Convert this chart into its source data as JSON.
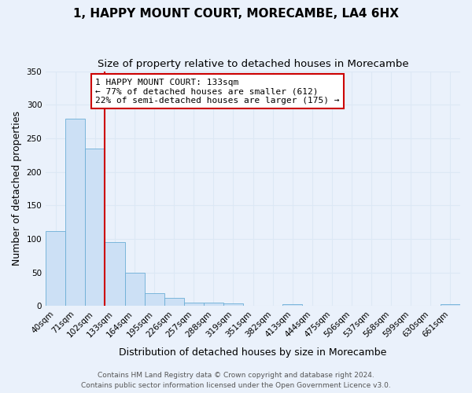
{
  "title": "1, HAPPY MOUNT COURT, MORECAMBE, LA4 6HX",
  "subtitle": "Size of property relative to detached houses in Morecambe",
  "xlabel": "Distribution of detached houses by size in Morecambe",
  "ylabel": "Number of detached properties",
  "bin_labels": [
    "40sqm",
    "71sqm",
    "102sqm",
    "133sqm",
    "164sqm",
    "195sqm",
    "226sqm",
    "257sqm",
    "288sqm",
    "319sqm",
    "351sqm",
    "382sqm",
    "413sqm",
    "444sqm",
    "475sqm",
    "506sqm",
    "537sqm",
    "568sqm",
    "599sqm",
    "630sqm",
    "661sqm"
  ],
  "bar_heights": [
    111,
    279,
    235,
    95,
    49,
    19,
    12,
    5,
    5,
    4,
    0,
    0,
    3,
    0,
    0,
    0,
    0,
    0,
    0,
    0,
    3
  ],
  "bar_color": "#cce0f5",
  "bar_edge_color": "#6baed6",
  "property_line_x": 3.0,
  "property_line_color": "#cc0000",
  "annotation_text": "1 HAPPY MOUNT COURT: 133sqm\n← 77% of detached houses are smaller (612)\n22% of semi-detached houses are larger (175) →",
  "annotation_box_color": "#cc0000",
  "ylim": [
    0,
    350
  ],
  "yticks": [
    0,
    50,
    100,
    150,
    200,
    250,
    300,
    350
  ],
  "footer_line1": "Contains HM Land Registry data © Crown copyright and database right 2024.",
  "footer_line2": "Contains public sector information licensed under the Open Government Licence v3.0.",
  "background_color": "#eaf1fb",
  "grid_color": "#dce8f5",
  "title_fontsize": 11,
  "subtitle_fontsize": 9.5,
  "axis_label_fontsize": 9,
  "tick_fontsize": 7.5,
  "footer_fontsize": 6.5
}
